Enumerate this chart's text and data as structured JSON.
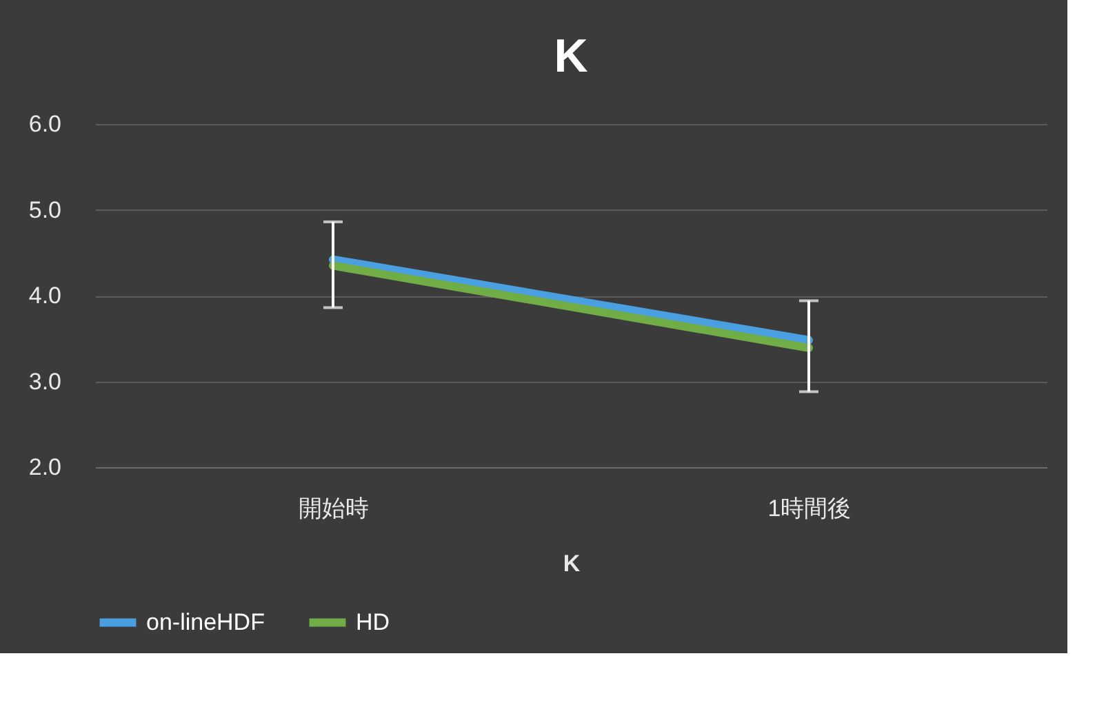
{
  "chart_data": {
    "type": "line",
    "title": "K",
    "xlabel": "K",
    "categories": [
      "開始時",
      "1時間後"
    ],
    "series": [
      {
        "name": "on-lineHDF",
        "color": "#4a9fe0",
        "values": [
          4.42,
          3.48
        ]
      },
      {
        "name": "HD",
        "color": "#70ad47",
        "values": [
          4.35,
          3.39
        ],
        "errors": [
          [
            3.86,
            4.86
          ],
          [
            2.88,
            3.94
          ]
        ]
      }
    ],
    "ylim": [
      2.0,
      6.0
    ],
    "yticks": [
      {
        "value": 2,
        "label": "2.0"
      },
      {
        "value": 3,
        "label": "3.0"
      },
      {
        "value": 4,
        "label": "4.0"
      },
      {
        "value": 5,
        "label": "5.0"
      },
      {
        "value": 6,
        "label": "6.0"
      }
    ],
    "grid": "y",
    "legend": "bottom",
    "marker": "none",
    "line_style": "solid"
  }
}
